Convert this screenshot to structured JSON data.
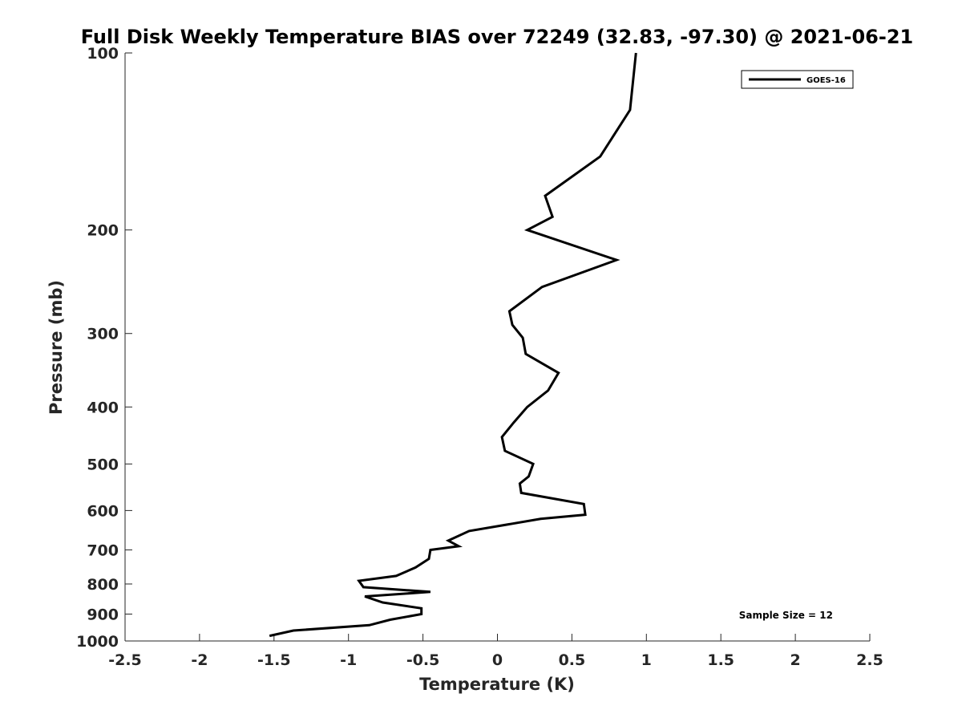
{
  "chart_data": {
    "type": "line",
    "title": "Full Disk Weekly Temperature BIAS over 72249 (32.83, -97.30) @ 2021-06-21",
    "xlabel": "Temperature (K)",
    "ylabel": "Pressure (mb)",
    "xlim": [
      -2.5,
      2.5
    ],
    "ylim": [
      100,
      1000
    ],
    "y_scale": "log",
    "y_reversed": true,
    "x_ticks": [
      "-2.5",
      "-2",
      "-1.5",
      "-1",
      "-0.5",
      "0",
      "0.5",
      "1",
      "1.5",
      "2",
      "2.5"
    ],
    "y_ticks": [
      "100",
      "200",
      "300",
      "400",
      "500",
      "600",
      "700",
      "800",
      "900",
      "1000"
    ],
    "grid": false,
    "legend_position": "top-right",
    "series": [
      {
        "name": "GOES-16",
        "color": "#000000",
        "points": [
          {
            "x": 0.93,
            "y": 100
          },
          {
            "x": 0.89,
            "y": 125
          },
          {
            "x": 0.69,
            "y": 150
          },
          {
            "x": 0.32,
            "y": 175
          },
          {
            "x": 0.37,
            "y": 190
          },
          {
            "x": 0.2,
            "y": 200
          },
          {
            "x": 0.8,
            "y": 225
          },
          {
            "x": 0.3,
            "y": 250
          },
          {
            "x": 0.08,
            "y": 275
          },
          {
            "x": 0.1,
            "y": 290
          },
          {
            "x": 0.17,
            "y": 305
          },
          {
            "x": 0.19,
            "y": 325
          },
          {
            "x": 0.41,
            "y": 350
          },
          {
            "x": 0.34,
            "y": 375
          },
          {
            "x": 0.2,
            "y": 400
          },
          {
            "x": 0.11,
            "y": 425
          },
          {
            "x": 0.03,
            "y": 450
          },
          {
            "x": 0.05,
            "y": 475
          },
          {
            "x": 0.24,
            "y": 500
          },
          {
            "x": 0.21,
            "y": 525
          },
          {
            "x": 0.15,
            "y": 540
          },
          {
            "x": 0.16,
            "y": 560
          },
          {
            "x": 0.58,
            "y": 585
          },
          {
            "x": 0.59,
            "y": 610
          },
          {
            "x": 0.29,
            "y": 620
          },
          {
            "x": -0.19,
            "y": 650
          },
          {
            "x": -0.33,
            "y": 675
          },
          {
            "x": -0.26,
            "y": 690
          },
          {
            "x": -0.45,
            "y": 700
          },
          {
            "x": -0.46,
            "y": 725
          },
          {
            "x": -0.55,
            "y": 750
          },
          {
            "x": -0.68,
            "y": 775
          },
          {
            "x": -0.93,
            "y": 790
          },
          {
            "x": -0.9,
            "y": 810
          },
          {
            "x": -0.45,
            "y": 825
          },
          {
            "x": -0.89,
            "y": 840
          },
          {
            "x": -0.77,
            "y": 860
          },
          {
            "x": -0.51,
            "y": 880
          },
          {
            "x": -0.51,
            "y": 900
          },
          {
            "x": -0.72,
            "y": 920
          },
          {
            "x": -0.86,
            "y": 940
          },
          {
            "x": -1.37,
            "y": 960
          },
          {
            "x": -1.53,
            "y": 980
          }
        ]
      }
    ],
    "annotations": [
      "Sample Size = 12"
    ]
  }
}
